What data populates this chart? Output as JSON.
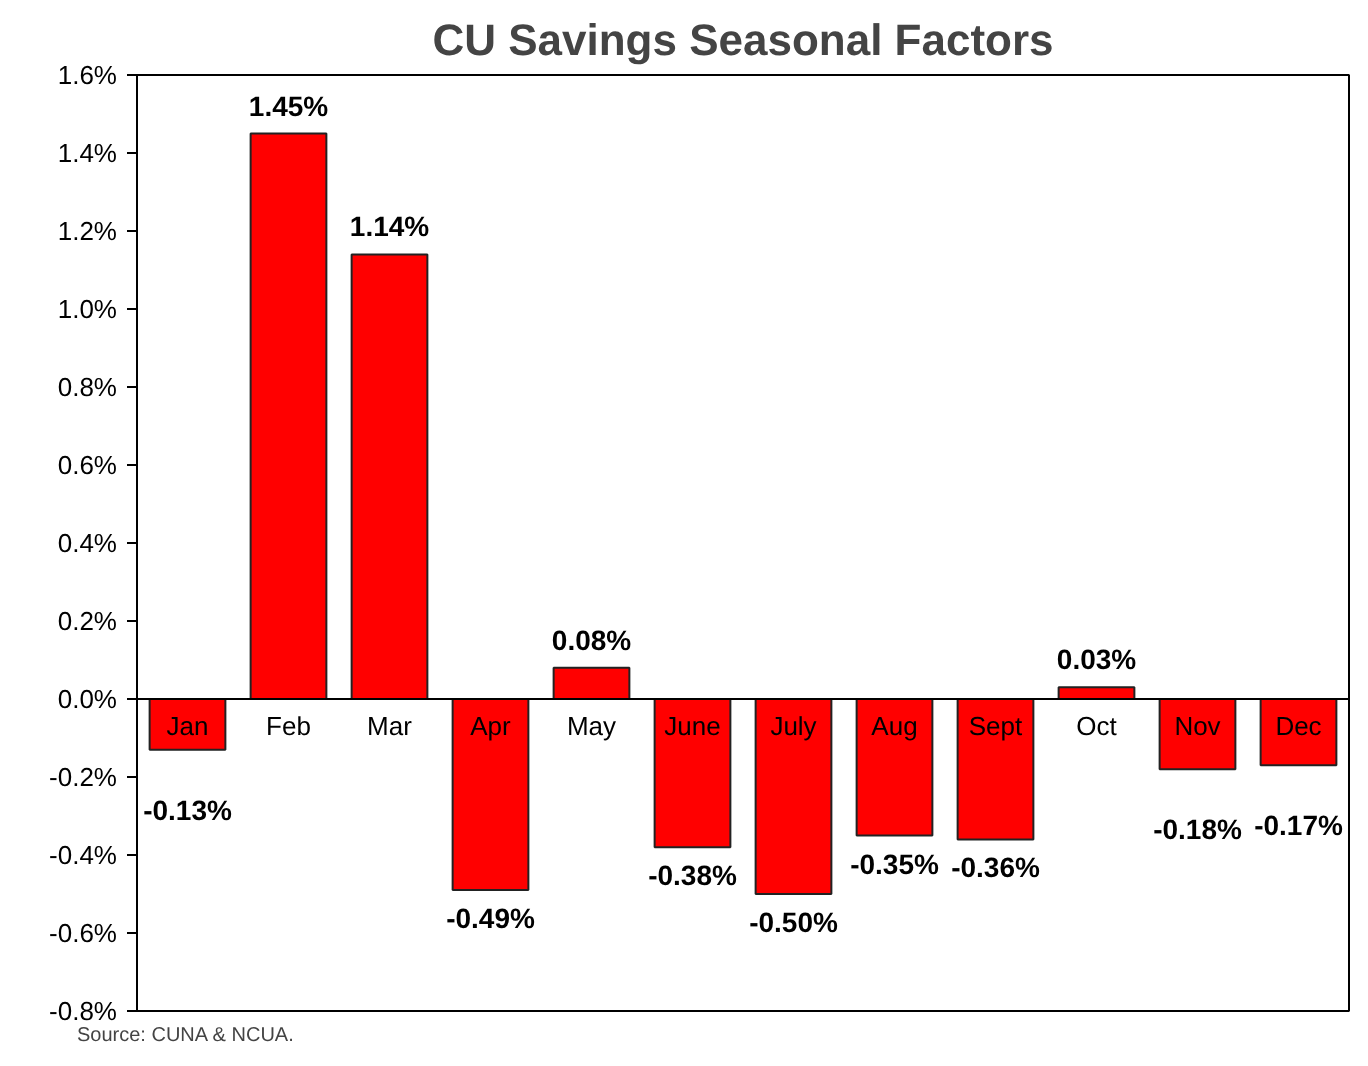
{
  "chart_data": {
    "type": "bar",
    "title": "CU Savings Seasonal Factors",
    "categories": [
      "Jan",
      "Feb",
      "Mar",
      "Apr",
      "May",
      "June",
      "July",
      "Aug",
      "Sept",
      "Oct",
      "Nov",
      "Dec"
    ],
    "values": [
      -0.13,
      1.45,
      1.14,
      -0.49,
      0.08,
      -0.38,
      -0.5,
      -0.35,
      -0.36,
      0.03,
      -0.18,
      -0.17
    ],
    "value_labels": [
      "-0.13%",
      "1.45%",
      "1.14%",
      "-0.49%",
      "0.08%",
      "-0.38%",
      "-0.50%",
      "-0.35%",
      "-0.36%",
      "0.03%",
      "-0.18%",
      "-0.17%"
    ],
    "color": "#ff0000",
    "ylim": [
      -0.8,
      1.6
    ],
    "yticks": [
      {
        "value": -0.8,
        "label": "-0.8%"
      },
      {
        "value": -0.6,
        "label": "-0.6%"
      },
      {
        "value": -0.4,
        "label": "-0.4%"
      },
      {
        "value": -0.2,
        "label": "-0.2%"
      },
      {
        "value": 0.0,
        "label": "0.0%"
      },
      {
        "value": 0.2,
        "label": "0.2%"
      },
      {
        "value": 0.4,
        "label": "0.4%"
      },
      {
        "value": 0.6,
        "label": "0.6%"
      },
      {
        "value": 0.8,
        "label": "0.8%"
      },
      {
        "value": 1.0,
        "label": "1.0%"
      },
      {
        "value": 1.2,
        "label": "1.2%"
      },
      {
        "value": 1.4,
        "label": "1.4%"
      },
      {
        "value": 1.6,
        "label": "1.6%"
      }
    ],
    "grid": false,
    "annotations": [
      "Source: CUNA & NCUA."
    ]
  }
}
